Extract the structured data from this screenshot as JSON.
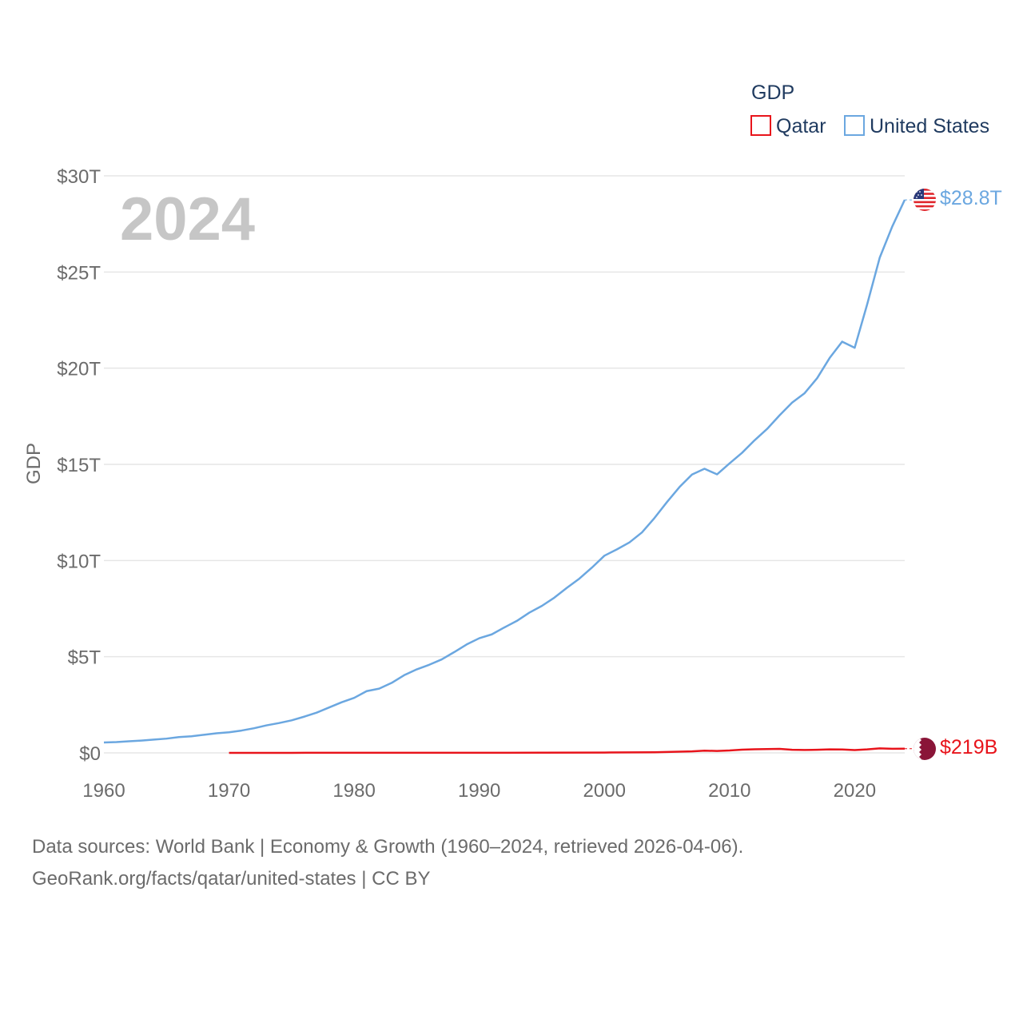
{
  "chart_data": {
    "type": "line",
    "title": "",
    "current_year": "2024",
    "xlabel": "",
    "ylabel": "GDP",
    "xlim": [
      1960,
      2024
    ],
    "ylim": [
      0,
      30
    ],
    "y_unit": "trillion USD",
    "x_ticks": [
      1960,
      1970,
      1980,
      1990,
      2000,
      2010,
      2020
    ],
    "y_ticks": [
      {
        "value": 0,
        "label": "$0"
      },
      {
        "value": 5,
        "label": "$5T"
      },
      {
        "value": 10,
        "label": "$10T"
      },
      {
        "value": 15,
        "label": "$15T"
      },
      {
        "value": 20,
        "label": "$20T"
      },
      {
        "value": 25,
        "label": "$25T"
      },
      {
        "value": 30,
        "label": "$30T"
      }
    ],
    "legend": {
      "title": "GDP",
      "position": "top-right",
      "entries": [
        "Qatar",
        "United States"
      ]
    },
    "series": [
      {
        "name": "United States",
        "color": "#6ba7e0",
        "end_label": "$28.8T",
        "flag_icon": "us-flag-icon",
        "x": [
          1960,
          1961,
          1962,
          1963,
          1964,
          1965,
          1966,
          1967,
          1968,
          1969,
          1970,
          1971,
          1972,
          1973,
          1974,
          1975,
          1976,
          1977,
          1978,
          1979,
          1980,
          1981,
          1982,
          1983,
          1984,
          1985,
          1986,
          1987,
          1988,
          1989,
          1990,
          1991,
          1992,
          1993,
          1994,
          1995,
          1996,
          1997,
          1998,
          1999,
          2000,
          2001,
          2002,
          2003,
          2004,
          2005,
          2006,
          2007,
          2008,
          2009,
          2010,
          2011,
          2012,
          2013,
          2014,
          2015,
          2016,
          2017,
          2018,
          2019,
          2020,
          2021,
          2022,
          2023,
          2024
        ],
        "values": [
          0.54,
          0.56,
          0.6,
          0.64,
          0.69,
          0.74,
          0.82,
          0.86,
          0.94,
          1.02,
          1.07,
          1.16,
          1.28,
          1.43,
          1.55,
          1.69,
          1.88,
          2.09,
          2.36,
          2.63,
          2.86,
          3.21,
          3.34,
          3.64,
          4.04,
          4.34,
          4.58,
          4.86,
          5.24,
          5.64,
          5.96,
          6.16,
          6.52,
          6.86,
          7.29,
          7.64,
          8.07,
          8.58,
          9.06,
          9.63,
          10.25,
          10.58,
          10.94,
          11.46,
          12.21,
          13.04,
          13.82,
          14.47,
          14.77,
          14.48,
          15.05,
          15.6,
          16.25,
          16.84,
          17.55,
          18.21,
          18.7,
          19.48,
          20.53,
          21.38,
          21.06,
          23.32,
          25.74,
          27.36,
          28.75
        ]
      },
      {
        "name": "Qatar",
        "color": "#e8141b",
        "end_label": "$219B",
        "flag_icon": "qatar-flag-icon",
        "x": [
          1970,
          1975,
          1980,
          1985,
          1990,
          1995,
          2000,
          2004,
          2005,
          2006,
          2007,
          2008,
          2009,
          2010,
          2011,
          2012,
          2013,
          2014,
          2015,
          2016,
          2017,
          2018,
          2019,
          2020,
          2021,
          2022,
          2023,
          2024
        ],
        "values": [
          0.0003,
          0.0025,
          0.0076,
          0.0063,
          0.0074,
          0.0081,
          0.0178,
          0.0317,
          0.0446,
          0.0605,
          0.0795,
          0.1151,
          0.0975,
          0.1251,
          0.1677,
          0.1867,
          0.1985,
          0.2065,
          0.1617,
          0.1516,
          0.1611,
          0.1832,
          0.176,
          0.1444,
          0.1797,
          0.2361,
          0.2133,
          0.219
        ]
      }
    ]
  },
  "footer": {
    "line1": "Data sources: World Bank | Economy & Growth (1960–2024, retrieved 2026-04-06).",
    "line2": "GeoRank.org/facts/qatar/united-states | CC BY"
  }
}
